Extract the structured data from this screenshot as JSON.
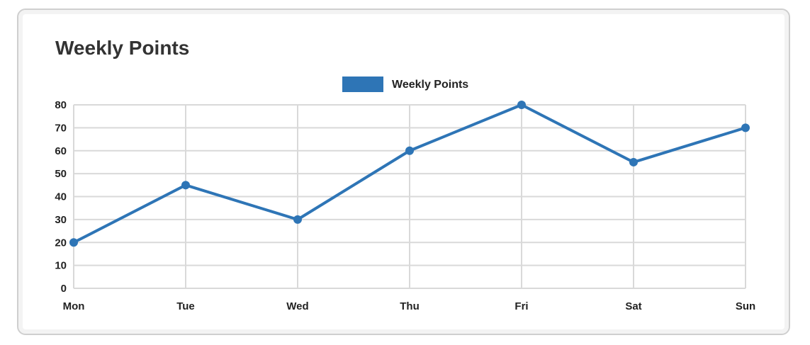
{
  "chart_data": {
    "type": "line",
    "title": "Weekly Points",
    "xlabel": "",
    "ylabel": "",
    "categories": [
      "Mon",
      "Tue",
      "Wed",
      "Thu",
      "Fri",
      "Sat",
      "Sun"
    ],
    "series": [
      {
        "name": "Weekly Points",
        "values": [
          20,
          45,
          30,
          60,
          80,
          55,
          70
        ],
        "color": "#2e75b6"
      }
    ],
    "ylim": [
      0,
      80
    ],
    "yticks": [
      "0",
      "10",
      "20",
      "30",
      "40",
      "50",
      "60",
      "70",
      "80"
    ],
    "grid": true,
    "legend_position": "top-center",
    "gridline_color": "#d9d9d9"
  }
}
